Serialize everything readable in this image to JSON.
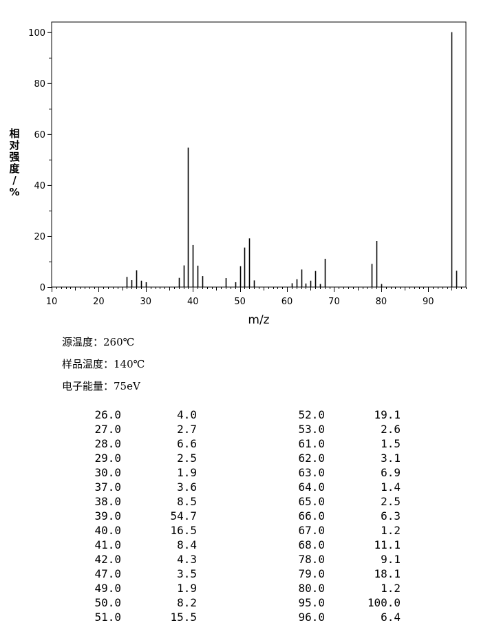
{
  "chart_data": {
    "type": "bar",
    "xlabel": "m/z",
    "ylabel": "相对强度/%",
    "xlim": [
      10,
      98
    ],
    "ylim": [
      0,
      104
    ],
    "xticks": [
      10,
      20,
      30,
      40,
      50,
      60,
      70,
      80,
      90
    ],
    "yticks": [
      0,
      20,
      40,
      60,
      80,
      100
    ],
    "grid": false,
    "x": [
      26,
      27,
      28,
      29,
      30,
      37,
      38,
      39,
      40,
      41,
      42,
      47,
      49,
      50,
      51,
      52,
      53,
      61,
      62,
      63,
      64,
      65,
      66,
      67,
      68,
      78,
      79,
      80,
      95,
      96
    ],
    "values": [
      4.0,
      2.7,
      6.6,
      2.5,
      1.9,
      3.6,
      8.5,
      54.7,
      16.5,
      8.4,
      4.3,
      3.5,
      1.9,
      8.2,
      15.5,
      19.1,
      2.6,
      1.5,
      3.1,
      6.9,
      1.4,
      2.5,
      6.3,
      1.2,
      11.1,
      9.1,
      18.1,
      1.2,
      100.0,
      6.4
    ],
    "x_labels": [
      "26.0",
      "27.0",
      "28.0",
      "29.0",
      "30.0",
      "37.0",
      "38.0",
      "39.0",
      "40.0",
      "41.0",
      "42.0",
      "47.0",
      "49.0",
      "50.0",
      "51.0",
      "52.0",
      "53.0",
      "61.0",
      "62.0",
      "63.0",
      "64.0",
      "65.0",
      "66.0",
      "67.0",
      "68.0",
      "78.0",
      "79.0",
      "80.0",
      "95.0",
      "96.0"
    ],
    "value_labels": [
      "4.0",
      "2.7",
      "6.6",
      "2.5",
      "1.9",
      "3.6",
      "8.5",
      "54.7",
      "16.5",
      "8.4",
      "4.3",
      "3.5",
      "1.9",
      "8.2",
      "15.5",
      "19.1",
      "2.6",
      "1.5",
      "3.1",
      "6.9",
      "1.4",
      "2.5",
      "6.3",
      "1.2",
      "11.1",
      "9.1",
      "18.1",
      "1.2",
      "100.0",
      "6.4"
    ]
  },
  "conditions": {
    "source_temp": "源温度：260℃",
    "sample_temp": "样品温度：140℃",
    "electron_energy": "电子能量：75eV"
  },
  "colors": {
    "line": "#000000",
    "background": "#ffffff"
  }
}
